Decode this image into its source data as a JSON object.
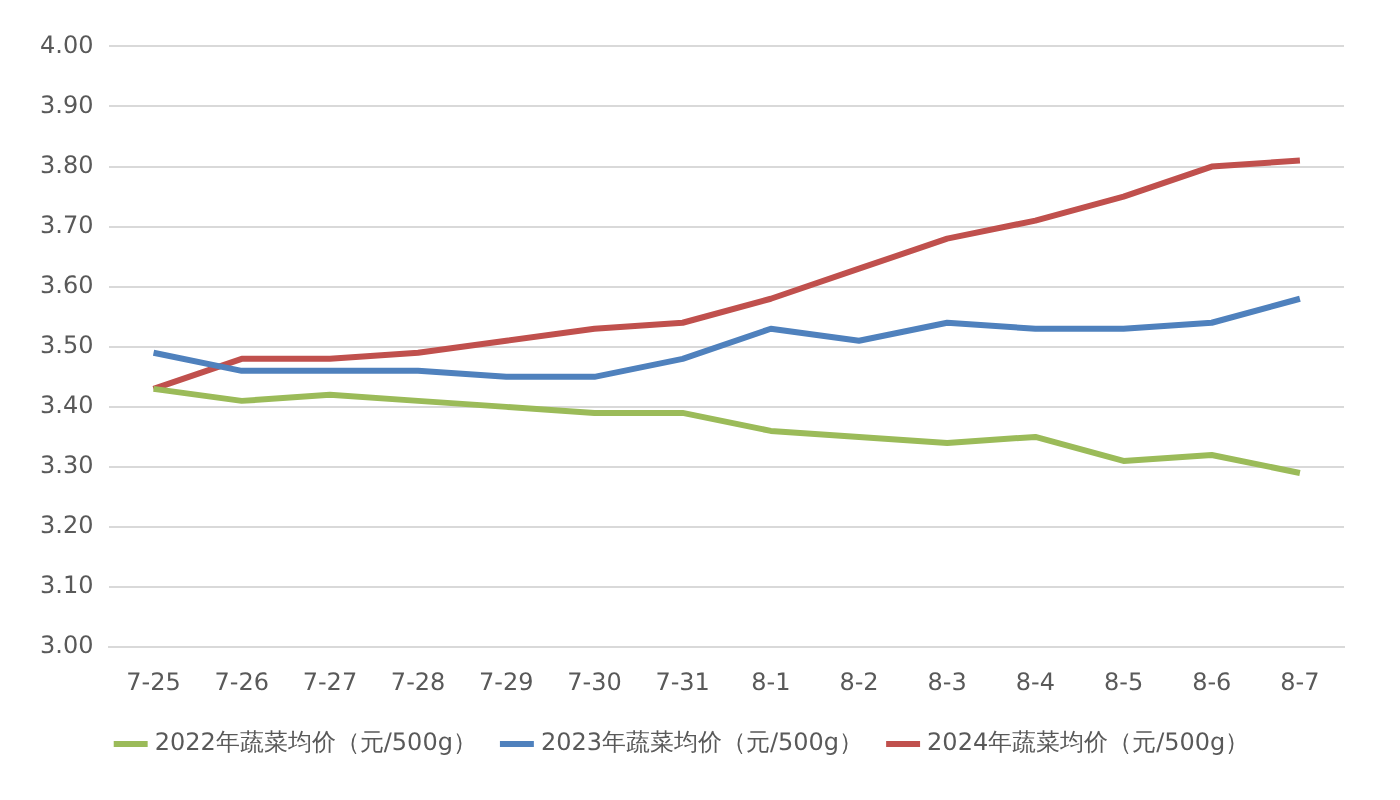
{
  "chart_data": {
    "type": "line",
    "categories": [
      "7-25",
      "7-26",
      "7-27",
      "7-28",
      "7-29",
      "7-30",
      "7-31",
      "8-1",
      "8-2",
      "8-3",
      "8-4",
      "8-5",
      "8-6",
      "8-7"
    ],
    "series": [
      {
        "name": "2022年蔬菜均价（元/500g）",
        "color": "#9bbb59",
        "values": [
          3.43,
          3.41,
          3.42,
          3.41,
          3.4,
          3.39,
          3.39,
          3.36,
          3.35,
          3.34,
          3.35,
          3.31,
          3.32,
          3.29
        ]
      },
      {
        "name": "2023年蔬菜均价（元/500g）",
        "color": "#4f81bd",
        "values": [
          3.49,
          3.46,
          3.46,
          3.46,
          3.45,
          3.45,
          3.48,
          3.53,
          3.51,
          3.54,
          3.53,
          3.53,
          3.54,
          3.58
        ]
      },
      {
        "name": "2024年蔬菜均价（元/500g）",
        "color": "#c0504d",
        "values": [
          3.43,
          3.48,
          3.48,
          3.49,
          3.51,
          3.53,
          3.54,
          3.58,
          3.63,
          3.68,
          3.71,
          3.75,
          3.8,
          3.81
        ]
      }
    ],
    "ylim": [
      3.0,
      4.0
    ],
    "yticks": [
      {
        "value": 3.0,
        "label": "3.00"
      },
      {
        "value": 3.1,
        "label": "3.10"
      },
      {
        "value": 3.2,
        "label": "3.20"
      },
      {
        "value": 3.3,
        "label": "3.30"
      },
      {
        "value": 3.4,
        "label": "3.40"
      },
      {
        "value": 3.5,
        "label": "3.50"
      },
      {
        "value": 3.6,
        "label": "3.60"
      },
      {
        "value": 3.7,
        "label": "3.70"
      },
      {
        "value": 3.8,
        "label": "3.80"
      },
      {
        "value": 3.9,
        "label": "3.90"
      },
      {
        "value": 4.0,
        "label": "4.00"
      }
    ],
    "grid": "y",
    "legend": "bottom",
    "marker": "none",
    "line_style": "solid"
  }
}
